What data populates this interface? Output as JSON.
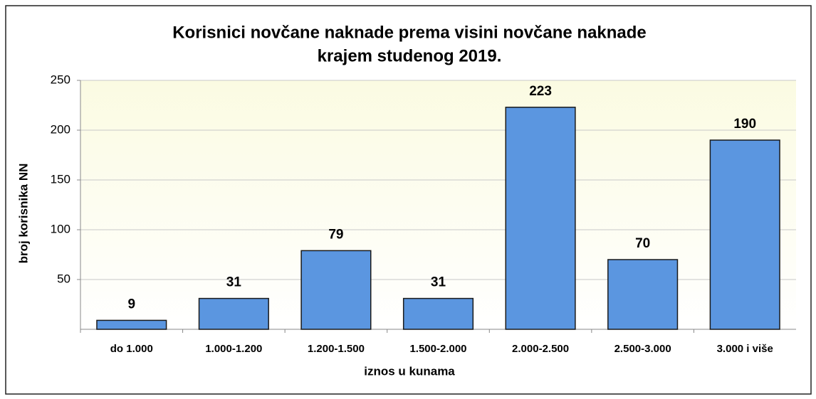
{
  "chart_data": {
    "type": "bar",
    "title": [
      "Korisnici novčane naknade prema visini novčane naknade",
      "krajem studenog 2019."
    ],
    "x_label": "iznos u kunama",
    "y_label": "broj korisnika NN",
    "categories": [
      "do 1.000",
      "1.000-1.200",
      "1.200-1.500",
      "1.500-2.000",
      "2.000-2.500",
      "2.500-3.000",
      "3.000 i više"
    ],
    "values": [
      9,
      31,
      79,
      31,
      223,
      70,
      190
    ],
    "color": "#5b96e0",
    "ylim": [
      0,
      250
    ],
    "yticks": [
      50,
      100,
      150,
      200,
      250
    ],
    "grid": true
  }
}
